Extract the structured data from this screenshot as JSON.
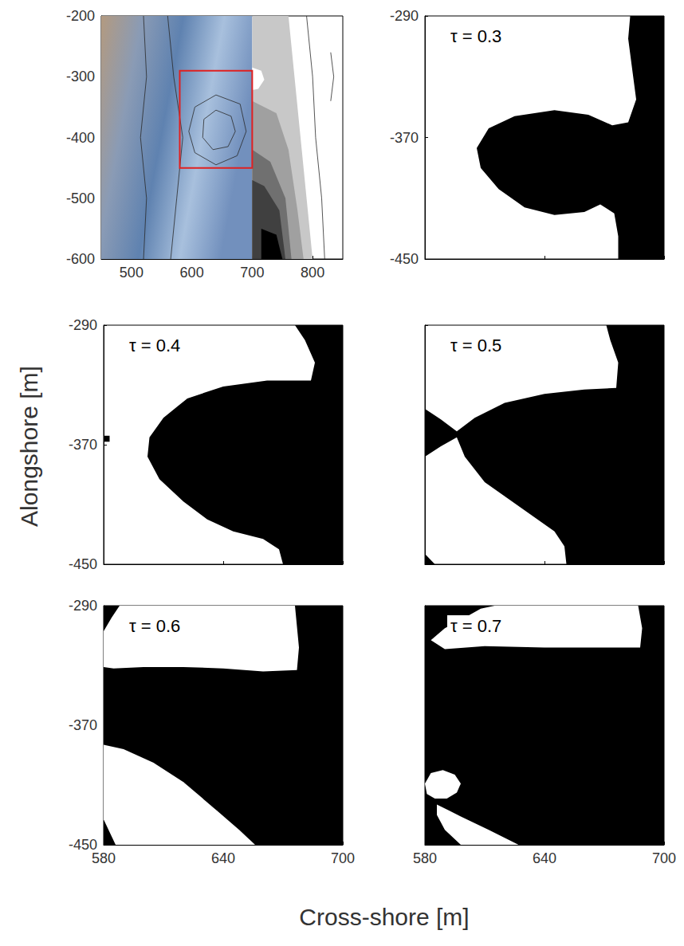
{
  "xlabel": "Cross-shore [m]",
  "ylabel": "Alongshore [m]",
  "chart_data": [
    {
      "type": "map",
      "xlim": [
        450,
        850
      ],
      "ylim": [
        -600,
        -200
      ],
      "xticks": [
        500,
        600,
        700,
        800
      ],
      "yticks": [
        -600,
        -500,
        -400,
        -300,
        -200
      ],
      "tick_labels": true,
      "image": {
        "x": [
          450,
          700
        ],
        "y": [
          -600,
          -200
        ],
        "colors": [
          "#b39a80",
          "#8a9bb5",
          "#5f82b0",
          "#a8c0dd",
          "#7290bd"
        ]
      },
      "bands": [
        {
          "color": "#c8c8c8",
          "points": [
            [
              700,
              -200
            ],
            [
              760,
              -200
            ],
            [
              770,
              -300
            ],
            [
              780,
              -400
            ],
            [
              790,
              -500
            ],
            [
              800,
              -600
            ],
            [
              700,
              -600
            ]
          ]
        },
        {
          "color": "#a0a0a0",
          "points": [
            [
              700,
              -340
            ],
            [
              740,
              -360
            ],
            [
              760,
              -420
            ],
            [
              775,
              -520
            ],
            [
              785,
              -600
            ],
            [
              700,
              -600
            ]
          ]
        },
        {
          "color": "#707070",
          "points": [
            [
              700,
              -420
            ],
            [
              730,
              -440
            ],
            [
              755,
              -500
            ],
            [
              765,
              -600
            ],
            [
              700,
              -600
            ]
          ]
        },
        {
          "color": "#404040",
          "points": [
            [
              700,
              -470
            ],
            [
              720,
              -480
            ],
            [
              745,
              -520
            ],
            [
              755,
              -600
            ],
            [
              700,
              -600
            ]
          ]
        },
        {
          "color": "#000000",
          "points": [
            [
              715,
              -550
            ],
            [
              740,
              -560
            ],
            [
              750,
              -600
            ],
            [
              715,
              -600
            ]
          ]
        },
        {
          "color": "#ffffff",
          "points": [
            [
              700,
              -285
            ],
            [
              715,
              -290
            ],
            [
              720,
              -305
            ],
            [
              710,
              -320
            ],
            [
              700,
              -322
            ]
          ]
        }
      ],
      "contours": [
        [
          [
            620,
            -370
          ],
          [
            640,
            -355
          ],
          [
            665,
            -365
          ],
          [
            672,
            -390
          ],
          [
            660,
            -415
          ],
          [
            635,
            -420
          ],
          [
            618,
            -400
          ],
          [
            620,
            -370
          ]
        ],
        [
          [
            605,
            -350
          ],
          [
            640,
            -330
          ],
          [
            680,
            -345
          ],
          [
            690,
            -390
          ],
          [
            675,
            -430
          ],
          [
            640,
            -445
          ],
          [
            605,
            -425
          ],
          [
            595,
            -390
          ],
          [
            605,
            -350
          ]
        ],
        [
          [
            520,
            -200
          ],
          [
            525,
            -300
          ],
          [
            515,
            -400
          ],
          [
            525,
            -500
          ],
          [
            520,
            -600
          ]
        ],
        [
          [
            560,
            -200
          ],
          [
            570,
            -300
          ],
          [
            585,
            -400
          ],
          [
            575,
            -500
          ],
          [
            565,
            -600
          ]
        ],
        [
          [
            790,
            -200
          ],
          [
            800,
            -300
          ],
          [
            805,
            -400
          ],
          [
            815,
            -500
          ],
          [
            820,
            -600
          ]
        ],
        [
          [
            830,
            -260
          ],
          [
            835,
            -300
          ],
          [
            830,
            -340
          ]
        ]
      ],
      "box": {
        "x": [
          580,
          700
        ],
        "y": [
          -450,
          -290
        ],
        "color": "#e02020"
      }
    },
    {
      "type": "mask",
      "title": "τ = 0.3",
      "xlim": [
        580,
        700
      ],
      "ylim": [
        -450,
        -290
      ],
      "xticks": [
        580,
        640,
        700
      ],
      "yticks": [
        -450,
        -370,
        -290
      ],
      "tick_labels": "y",
      "regions": [
        {
          "color": "#000000",
          "points": [
            [
              683,
              -290
            ],
            [
              700,
              -290
            ],
            [
              700,
              -450
            ],
            [
              677,
              -450
            ],
            [
              677,
              -435
            ],
            [
              675,
              -420
            ],
            [
              668,
              -414
            ],
            [
              660,
              -419
            ],
            [
              645,
              -421
            ],
            [
              630,
              -416
            ],
            [
              617,
              -404
            ],
            [
              608,
              -390
            ],
            [
              606,
              -377
            ],
            [
              612,
              -364
            ],
            [
              625,
              -356
            ],
            [
              645,
              -352
            ],
            [
              662,
              -355
            ],
            [
              674,
              -362
            ],
            [
              682,
              -360
            ],
            [
              686,
              -345
            ],
            [
              684,
              -325
            ],
            [
              682,
              -305
            ],
            [
              683,
              -290
            ]
          ]
        }
      ]
    },
    {
      "type": "mask",
      "title": "τ = 0.4",
      "xlim": [
        580,
        700
      ],
      "ylim": [
        -450,
        -290
      ],
      "xticks": [
        580,
        640,
        700
      ],
      "yticks": [
        -450,
        -370,
        -290
      ],
      "tick_labels": "y",
      "regions": [
        {
          "color": "#000000",
          "points": [
            [
              676,
              -290
            ],
            [
              700,
              -290
            ],
            [
              700,
              -450
            ],
            [
              670,
              -450
            ],
            [
              668,
              -440
            ],
            [
              660,
              -433
            ],
            [
              645,
              -428
            ],
            [
              632,
              -420
            ],
            [
              620,
              -408
            ],
            [
              608,
              -393
            ],
            [
              602,
              -378
            ],
            [
              603,
              -365
            ],
            [
              610,
              -352
            ],
            [
              622,
              -339
            ],
            [
              640,
              -331
            ],
            [
              662,
              -327
            ],
            [
              684,
              -327
            ],
            [
              686,
              -315
            ],
            [
              681,
              -300
            ],
            [
              676,
              -290
            ]
          ]
        },
        {
          "color": "#000000",
          "points": [
            [
              580,
              -364
            ],
            [
              583,
              -364
            ],
            [
              583,
              -368
            ],
            [
              580,
              -368
            ]
          ]
        }
      ]
    },
    {
      "type": "mask",
      "title": "τ = 0.5",
      "xlim": [
        580,
        700
      ],
      "ylim": [
        -450,
        -290
      ],
      "xticks": [
        580,
        640,
        700
      ],
      "yticks": [
        -450,
        -370,
        -290
      ],
      "tick_labels": false,
      "regions": [
        {
          "color": "#000000",
          "points": [
            [
              671,
              -290
            ],
            [
              700,
              -290
            ],
            [
              700,
              -450
            ],
            [
              651,
              -450
            ],
            [
              650,
              -438
            ],
            [
              645,
              -428
            ],
            [
              628,
              -412
            ],
            [
              610,
              -395
            ],
            [
              600,
              -378
            ],
            [
              596,
              -365
            ],
            [
              588,
              -371
            ],
            [
              580,
              -378
            ],
            [
              580,
              -346
            ],
            [
              588,
              -353
            ],
            [
              596,
              -361
            ],
            [
              605,
              -352
            ],
            [
              620,
              -342
            ],
            [
              640,
              -336
            ],
            [
              660,
              -333
            ],
            [
              676,
              -332
            ],
            [
              677,
              -315
            ],
            [
              673,
              -300
            ],
            [
              671,
              -290
            ]
          ]
        },
        {
          "color": "#000000",
          "points": [
            [
              580,
              -443
            ],
            [
              585,
              -450
            ],
            [
              580,
              -450
            ]
          ]
        }
      ]
    },
    {
      "type": "mask",
      "title": "τ = 0.6",
      "xlim": [
        580,
        700
      ],
      "ylim": [
        -450,
        -290
      ],
      "xticks": [
        580,
        640,
        700
      ],
      "yticks": [
        -450,
        -370,
        -290
      ],
      "tick_labels": true,
      "regions": [
        {
          "color": "#000000",
          "points": [
            [
              580,
              -290
            ],
            [
              700,
              -290
            ],
            [
              700,
              -450
            ],
            [
              580,
              -450
            ]
          ]
        },
        {
          "color": "#ffffff",
          "points": [
            [
              588,
              -290
            ],
            [
              676,
              -290
            ],
            [
              678,
              -318
            ],
            [
              677,
              -333
            ],
            [
              660,
              -334
            ],
            [
              640,
              -332
            ],
            [
              620,
              -331
            ],
            [
              600,
              -331
            ],
            [
              585,
              -332
            ],
            [
              580,
              -331
            ],
            [
              580,
              -307
            ],
            [
              584,
              -298
            ]
          ]
        },
        {
          "color": "#ffffff",
          "points": [
            [
              580,
              -383
            ],
            [
              590,
              -386
            ],
            [
              605,
              -395
            ],
            [
              620,
              -408
            ],
            [
              635,
              -425
            ],
            [
              648,
              -440
            ],
            [
              656,
              -450
            ],
            [
              586,
              -450
            ],
            [
              580,
              -433
            ]
          ]
        }
      ]
    },
    {
      "type": "mask",
      "title": "τ = 0.7",
      "xlim": [
        580,
        700
      ],
      "ylim": [
        -450,
        -290
      ],
      "xticks": [
        580,
        640,
        700
      ],
      "yticks": [
        -450,
        -370,
        -290
      ],
      "tick_labels": "x",
      "regions": [
        {
          "color": "#000000",
          "points": [
            [
              580,
              -290
            ],
            [
              700,
              -290
            ],
            [
              700,
              -450
            ],
            [
              580,
              -450
            ]
          ]
        },
        {
          "color": "#ffffff",
          "points": [
            [
              615,
              -290
            ],
            [
              687,
              -290
            ],
            [
              689,
              -305
            ],
            [
              688,
              -318
            ],
            [
              670,
              -318
            ],
            [
              640,
              -318
            ],
            [
              610,
              -317
            ],
            [
              590,
              -319
            ],
            [
              583,
              -313
            ],
            [
              590,
              -305
            ],
            [
              600,
              -298
            ],
            [
              608,
              -292
            ]
          ]
        },
        {
          "color": "#ffffff",
          "points": [
            [
              583,
              -402
            ],
            [
              589,
              -400
            ],
            [
              595,
              -403
            ],
            [
              598,
              -409
            ],
            [
              596,
              -415
            ],
            [
              591,
              -419
            ],
            [
              585,
              -419
            ],
            [
              581,
              -416
            ],
            [
              580,
              -409
            ]
          ]
        },
        {
          "color": "#ffffff",
          "points": [
            [
              586,
              -423
            ],
            [
              598,
              -431
            ],
            [
              612,
              -440
            ],
            [
              627,
              -450
            ],
            [
              598,
              -450
            ],
            [
              590,
              -440
            ],
            [
              586,
              -430
            ]
          ]
        }
      ]
    }
  ]
}
